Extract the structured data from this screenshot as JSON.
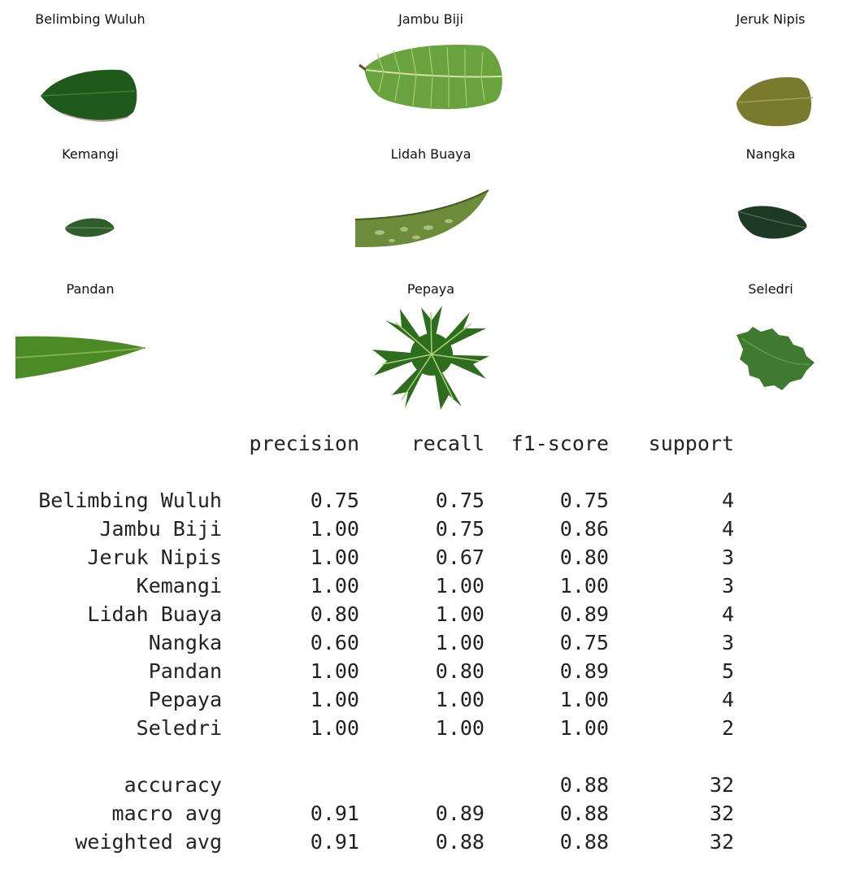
{
  "leaf_gallery": {
    "items": [
      {
        "title": "Belimbing Wuluh"
      },
      {
        "title": "Jambu Biji"
      },
      {
        "title": "Jeruk Nipis"
      },
      {
        "title": "Kemangi"
      },
      {
        "title": "Lidah Buaya"
      },
      {
        "title": "Nangka"
      },
      {
        "title": "Pandan"
      },
      {
        "title": "Pepaya"
      },
      {
        "title": "Seledri"
      }
    ]
  },
  "report": {
    "headers": {
      "precision": "precision",
      "recall": "recall",
      "f1": "f1-score",
      "support": "support"
    },
    "rows": [
      {
        "label": "Belimbing Wuluh",
        "precision": "0.75",
        "recall": "0.75",
        "f1": "0.75",
        "support": "4"
      },
      {
        "label": "Jambu Biji",
        "precision": "1.00",
        "recall": "0.75",
        "f1": "0.86",
        "support": "4"
      },
      {
        "label": "Jeruk Nipis",
        "precision": "1.00",
        "recall": "0.67",
        "f1": "0.80",
        "support": "3"
      },
      {
        "label": "Kemangi",
        "precision": "1.00",
        "recall": "1.00",
        "f1": "1.00",
        "support": "3"
      },
      {
        "label": "Lidah Buaya",
        "precision": "0.80",
        "recall": "1.00",
        "f1": "0.89",
        "support": "4"
      },
      {
        "label": "Nangka",
        "precision": "0.60",
        "recall": "1.00",
        "f1": "0.75",
        "support": "3"
      },
      {
        "label": "Pandan",
        "precision": "1.00",
        "recall": "0.80",
        "f1": "0.89",
        "support": "5"
      },
      {
        "label": "Pepaya",
        "precision": "1.00",
        "recall": "1.00",
        "f1": "1.00",
        "support": "4"
      },
      {
        "label": "Seledri",
        "precision": "1.00",
        "recall": "1.00",
        "f1": "1.00",
        "support": "2"
      }
    ],
    "summary": [
      {
        "label": "accuracy",
        "precision": "",
        "recall": "",
        "f1": "0.88",
        "support": "32"
      },
      {
        "label": "macro avg",
        "precision": "0.91",
        "recall": "0.89",
        "f1": "0.88",
        "support": "32"
      },
      {
        "label": "weighted avg",
        "precision": "0.91",
        "recall": "0.88",
        "f1": "0.88",
        "support": "32"
      }
    ]
  }
}
